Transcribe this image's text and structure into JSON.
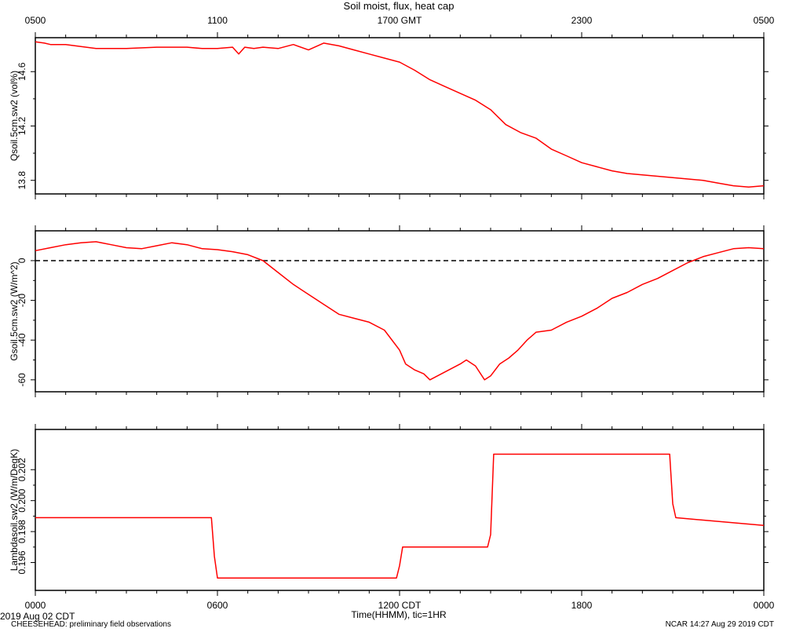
{
  "title": "Soil moist, flux, heat cap",
  "top_axis": {
    "ticks": [
      {
        "h": 0,
        "label": "0500"
      },
      {
        "h": 6,
        "label": "1100"
      },
      {
        "h": 12,
        "label": "1700 GMT"
      },
      {
        "h": 18,
        "label": "2300"
      },
      {
        "h": 24,
        "label": "0500"
      }
    ]
  },
  "bottom_axis": {
    "ticks": [
      {
        "h": 0,
        "label": "0000"
      },
      {
        "h": 6,
        "label": "0600"
      },
      {
        "h": 12,
        "label": "1200 CDT"
      },
      {
        "h": 18,
        "label": "1800"
      },
      {
        "h": 24,
        "label": "0000"
      }
    ],
    "xlabel": "Time(HHMM), tic=1HR"
  },
  "footer": {
    "date": "2019 Aug 02 CDT",
    "project": "CHEESEHEAD: preliminary field observations",
    "stamp": "NCAR 14:27 Aug 29 2019 CDT"
  },
  "colors": {
    "line": "#ff0000",
    "axis": "#000000",
    "zero_line": "#000000"
  },
  "chart_data": [
    {
      "type": "line",
      "ylabel": "Qsoil.5cm.sw2 (vol%)",
      "xlim": [
        0,
        24
      ],
      "ylim": [
        13.7,
        14.85
      ],
      "yticks": [
        13.8,
        14.2,
        14.6
      ],
      "ytick_labels": [
        "13.8",
        "14.2",
        "14.6"
      ],
      "series": [
        {
          "x": [
            0,
            0.3,
            0.5,
            1,
            2,
            3,
            4,
            5,
            5.5,
            6,
            6.5,
            6.7,
            6.9,
            7.2,
            7.5,
            8,
            8.5,
            9,
            9.5,
            10,
            10.5,
            11,
            11.5,
            12,
            12.5,
            13,
            13.5,
            14,
            14.5,
            15,
            15.5,
            16,
            16.5,
            17,
            17.5,
            18,
            18.5,
            19,
            19.5,
            20,
            20.5,
            21,
            21.5,
            22,
            22.5,
            23,
            23.5,
            24
          ],
          "y": [
            14.82,
            14.81,
            14.8,
            14.8,
            14.77,
            14.77,
            14.78,
            14.78,
            14.77,
            14.77,
            14.78,
            14.73,
            14.78,
            14.77,
            14.78,
            14.77,
            14.8,
            14.76,
            14.81,
            14.79,
            14.76,
            14.73,
            14.7,
            14.67,
            14.61,
            14.54,
            14.49,
            14.44,
            14.39,
            14.32,
            14.21,
            14.15,
            14.11,
            14.03,
            13.98,
            13.93,
            13.9,
            13.87,
            13.85,
            13.84,
            13.83,
            13.82,
            13.81,
            13.8,
            13.78,
            13.76,
            13.75,
            13.76
          ]
        }
      ]
    },
    {
      "type": "line",
      "ylabel": "Gsoil.5cm.sw2 (W/m^2)",
      "xlim": [
        0,
        24
      ],
      "ylim": [
        -66,
        15
      ],
      "yticks": [
        -60,
        -40,
        -20,
        0
      ],
      "ytick_labels": [
        "-60",
        "-40",
        "-20",
        "0"
      ],
      "reference_line": {
        "y": 0,
        "style": "dashed"
      },
      "series": [
        {
          "x": [
            0,
            0.5,
            1,
            1.5,
            2,
            2.5,
            3,
            3.5,
            4,
            4.5,
            5,
            5.5,
            6,
            6.5,
            7,
            7.5,
            8,
            8.5,
            9,
            9.5,
            10,
            10.5,
            11,
            11.5,
            12,
            12.2,
            12.5,
            12.8,
            13,
            13.5,
            14,
            14.2,
            14.5,
            14.8,
            15,
            15.3,
            15.6,
            15.9,
            16.2,
            16.5,
            17,
            17.5,
            18,
            18.5,
            19,
            19.5,
            20,
            20.5,
            21,
            21.5,
            22,
            22.5,
            23,
            23.5,
            24
          ],
          "y": [
            5,
            6.5,
            8,
            9,
            9.5,
            8,
            6.5,
            6,
            7.5,
            9,
            8,
            6,
            5.5,
            4.5,
            3,
            0,
            -6,
            -12,
            -17,
            -22,
            -27,
            -29,
            -31,
            -35,
            -45,
            -52,
            -55,
            -57,
            -60,
            -56,
            -52,
            -50,
            -53,
            -60,
            -58,
            -52,
            -49,
            -45,
            -40,
            -36,
            -35,
            -31,
            -28,
            -24,
            -19,
            -16,
            -12,
            -9,
            -5,
            -1,
            2,
            4,
            6,
            6.5,
            6
          ]
        }
      ]
    },
    {
      "type": "line",
      "ylabel": "Lambdasoil.sw2 (W/m/DegK)",
      "xlim": [
        0,
        24
      ],
      "ylim": [
        0.1942,
        0.2046
      ],
      "yticks": [
        0.196,
        0.198,
        0.2,
        0.202
      ],
      "ytick_labels": [
        "0.196",
        "0.198",
        "0.200",
        "0.202"
      ],
      "series": [
        {
          "x": [
            0,
            5.8,
            5.9,
            6.0,
            11.9,
            12.0,
            12.1,
            14.9,
            15.0,
            15.1,
            20.9,
            21.0,
            21.1,
            24.0
          ],
          "y": [
            0.1989,
            0.1989,
            0.1964,
            0.195,
            0.195,
            0.1958,
            0.197,
            0.197,
            0.1978,
            0.203,
            0.203,
            0.1998,
            0.1989,
            0.1984
          ]
        }
      ]
    }
  ]
}
